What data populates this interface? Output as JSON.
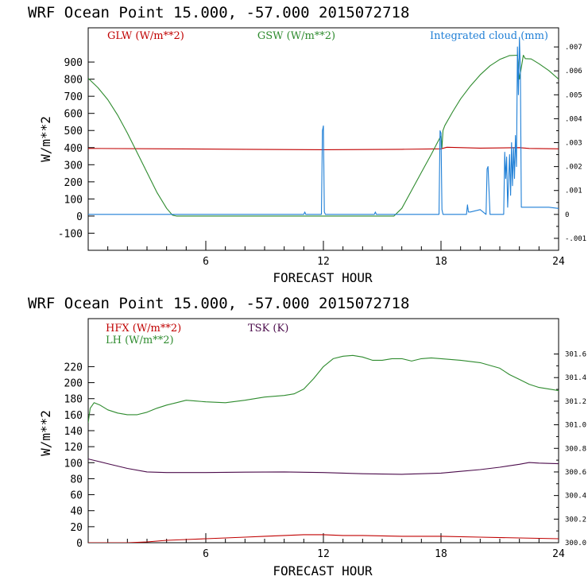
{
  "colors": {
    "red": "#c00000",
    "green": "#2e8b2e",
    "blue": "#1f7fd6",
    "purple": "#4b0b4b"
  },
  "chart_data": [
    {
      "type": "line",
      "title": "WRF   Ocean Point   15.000, -57.000  2015072718",
      "xlabel": "FORECAST HOUR",
      "ylabel": "W/m**2",
      "xlim": [
        0,
        24
      ],
      "ylim": [
        -200,
        1100
      ],
      "xticks": [
        "6",
        "12",
        "18",
        "24"
      ],
      "yticks": [
        "-100",
        "0",
        "100",
        "200",
        "300",
        "400",
        "500",
        "600",
        "700",
        "800",
        "900"
      ],
      "y2lim": [
        -0.0015,
        0.0078
      ],
      "y2ticks": [
        "-.001",
        "0",
        ".001",
        ".002",
        ".003",
        ".004",
        ".005",
        ".006",
        ".007"
      ],
      "legend": [
        "GLW (W/m**2)",
        "GSW (W/m**2)",
        "Integrated cloud (mm)"
      ],
      "series": [
        {
          "name": "GLW (W/m**2)",
          "color": "red",
          "axis": "left",
          "x": [
            0,
            4,
            8,
            12,
            16,
            18,
            18.3,
            20,
            22,
            22.5,
            24
          ],
          "y": [
            395,
            393,
            390,
            388,
            390,
            393,
            402,
            397,
            400,
            395,
            393
          ]
        },
        {
          "name": "GSW (W/m**2)",
          "color": "green",
          "axis": "left",
          "x": [
            0,
            0.5,
            1,
            1.5,
            2,
            2.5,
            3,
            3.5,
            4,
            4.3,
            4.5,
            15.6,
            16,
            16.5,
            17,
            17.5,
            18,
            18.05,
            18.1,
            18.2,
            18.6,
            19,
            19.5,
            20,
            20.5,
            21,
            21.5,
            21.9,
            22.0,
            22.2,
            22.3,
            22.6,
            23,
            23.5,
            24
          ],
          "y": [
            805,
            750,
            680,
            590,
            485,
            370,
            255,
            140,
            45,
            5,
            0,
            0,
            45,
            150,
            255,
            360,
            470,
            400,
            500,
            530,
            610,
            685,
            760,
            825,
            878,
            915,
            938,
            940,
            800,
            940,
            920,
            918,
            890,
            850,
            800
          ]
        },
        {
          "name": "Integrated cloud (mm)",
          "color": "blue",
          "axis": "right",
          "x": [
            0,
            11.0,
            11.05,
            11.1,
            11.9,
            11.95,
            12.0,
            12.05,
            12.1,
            14.6,
            14.65,
            14.7,
            17.9,
            17.95,
            18.0,
            18.05,
            18.1,
            19.3,
            19.35,
            19.4,
            19.5,
            20.0,
            20.3,
            20.35,
            20.4,
            20.5,
            21.0,
            21.2,
            21.25,
            21.3,
            21.35,
            21.4,
            21.5,
            21.55,
            21.6,
            21.65,
            21.7,
            21.75,
            21.8,
            21.85,
            21.9,
            21.95,
            22.0,
            22.05,
            22.1,
            22.2,
            22.4,
            22.6,
            22.8,
            23.0,
            23.5,
            24.0
          ],
          "y": [
            0,
            0,
            0.0001,
            0,
            0,
            0.0035,
            0.0037,
            0.0001,
            0,
            0,
            0.0001,
            0,
            0,
            0.0035,
            0.0034,
            0.0002,
            0,
            0,
            0.0004,
            0.0001,
            0.0001,
            0.0002,
            0,
            0.0019,
            0.002,
            0,
            0,
            0,
            0.0026,
            0.0015,
            0.0024,
            0.0003,
            0.0025,
            0.0008,
            0.003,
            0.0012,
            0.0028,
            0.0015,
            0.0033,
            0.002,
            0.007,
            0.005,
            0.0074,
            0.006,
            0.0003,
            0.0003,
            0.0003,
            0.0003,
            0.0003,
            0.0003,
            0.0003,
            0.00025
          ]
        }
      ]
    },
    {
      "type": "line",
      "title": "WRF   Ocean Point   15.000, -57.000  2015072718",
      "xlabel": "FORECAST HOUR",
      "ylabel": "W/m**2",
      "xlim": [
        0,
        24
      ],
      "ylim": [
        0,
        280
      ],
      "xticks": [
        "6",
        "12",
        "18",
        "24"
      ],
      "yticks": [
        "0",
        "20",
        "40",
        "60",
        "80",
        "100",
        "120",
        "140",
        "160",
        "180",
        "200",
        "220"
      ],
      "y2lim": [
        300.0,
        301.9
      ],
      "y2ticks": [
        "300.0",
        "300.2",
        "300.4",
        "300.6",
        "300.8",
        "301.0",
        "301.2",
        "301.4",
        "301.6"
      ],
      "legend": [
        "HFX (W/m**2)",
        "LH (W/m**2)",
        "TSK (K)"
      ],
      "series": [
        {
          "name": "HFX (W/m**2)",
          "color": "red",
          "axis": "left",
          "x": [
            0,
            2,
            3,
            4,
            5,
            6,
            7,
            8,
            9,
            10,
            11,
            12,
            13,
            14,
            16,
            18,
            20,
            22,
            24
          ],
          "y": [
            0,
            0,
            1,
            3,
            4,
            5,
            6,
            7,
            8,
            9,
            10,
            10,
            9,
            9,
            8,
            8,
            7,
            6,
            5
          ]
        },
        {
          "name": "LH (W/m**2)",
          "color": "green",
          "axis": "left",
          "x": [
            0,
            0.1,
            0.3,
            0.6,
            1,
            1.5,
            2,
            2.5,
            3,
            3.5,
            4,
            4.5,
            5,
            5.5,
            6,
            7,
            8,
            9,
            10,
            10.5,
            11,
            11.5,
            12,
            12.5,
            13,
            13.5,
            14,
            14.5,
            15,
            15.5,
            16,
            16.5,
            17,
            17.5,
            18,
            19,
            20,
            21,
            21.5,
            22,
            22.5,
            23,
            23.5,
            24
          ],
          "y": [
            150,
            168,
            175,
            172,
            166,
            162,
            160,
            160,
            163,
            168,
            172,
            175,
            178,
            177,
            176,
            175,
            178,
            182,
            184,
            186,
            192,
            205,
            220,
            230,
            233,
            234,
            232,
            228,
            228,
            230,
            230,
            227,
            230,
            231,
            230,
            228,
            225,
            218,
            210,
            204,
            198,
            194,
            192,
            190
          ]
        },
        {
          "name": "TSK (K)",
          "color": "purple",
          "axis": "right",
          "x": [
            0,
            1,
            2,
            3,
            4,
            6,
            8,
            10,
            12,
            14,
            16,
            17,
            18,
            19,
            20,
            21,
            22,
            22.5,
            23,
            24
          ],
          "y": [
            300.71,
            300.67,
            300.63,
            300.6,
            300.595,
            300.595,
            300.598,
            300.6,
            300.595,
            300.585,
            300.58,
            300.585,
            300.59,
            300.605,
            300.62,
            300.64,
            300.665,
            300.68,
            300.675,
            300.67
          ]
        }
      ]
    }
  ]
}
